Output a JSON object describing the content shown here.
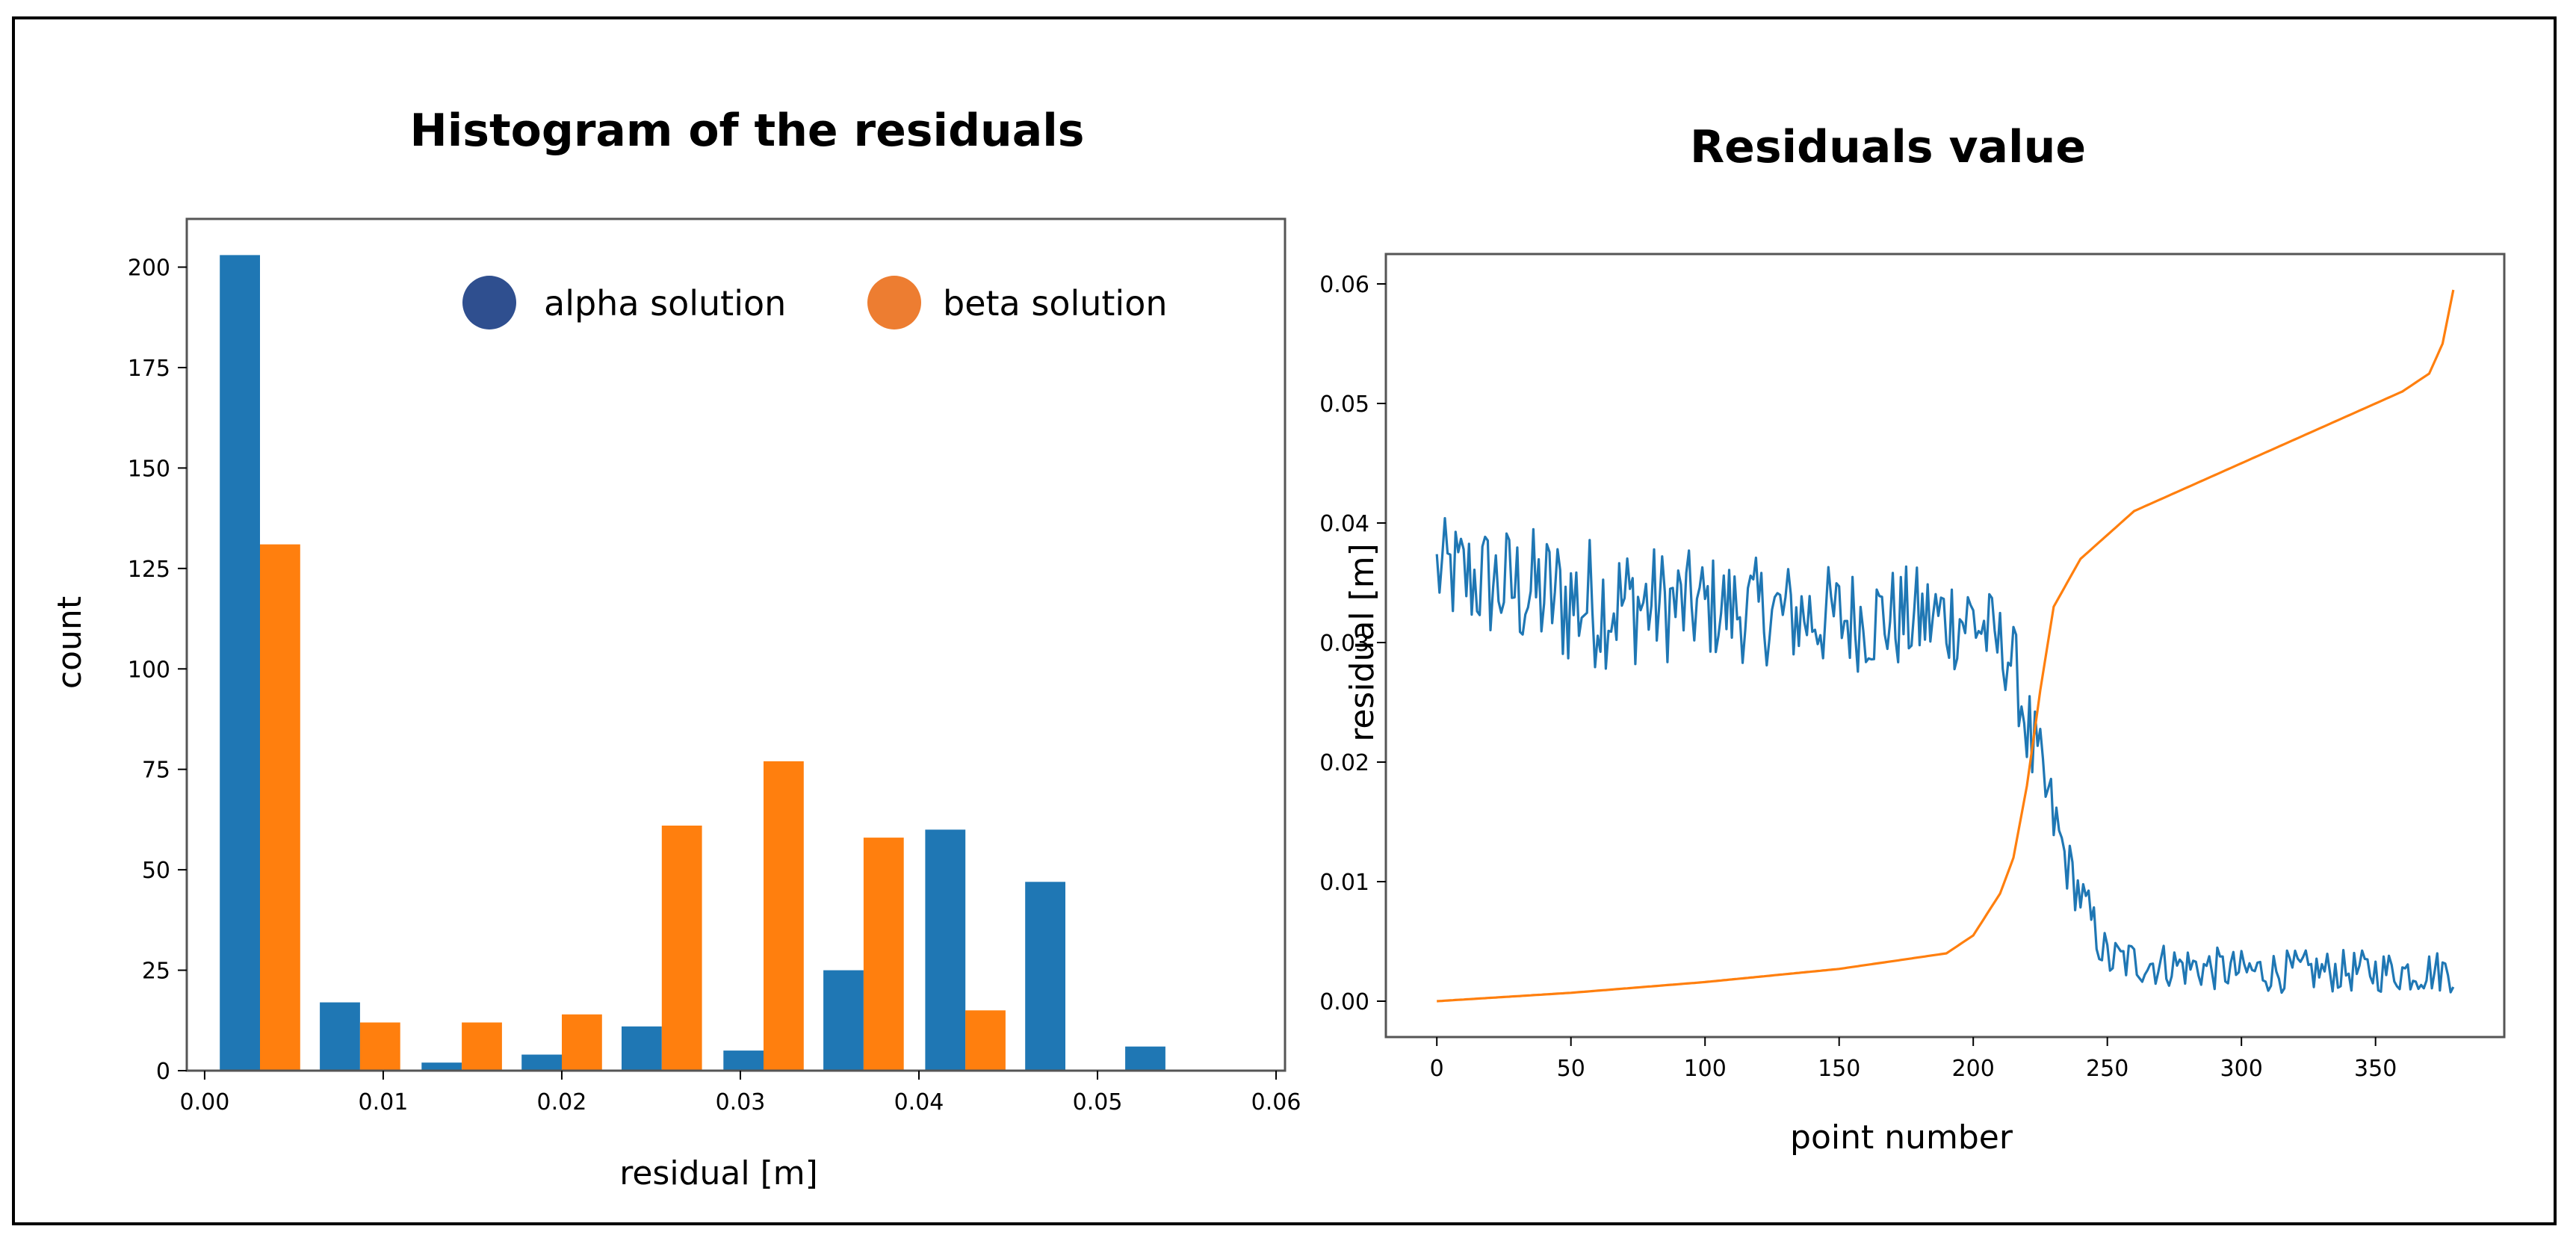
{
  "chart_data": [
    {
      "type": "bar",
      "title": "Histogram of the residuals",
      "xlabel": "residual [m]",
      "ylabel": "count",
      "xlim": [
        -0.001,
        0.0605
      ],
      "ylim": [
        0,
        212
      ],
      "xticks": [
        0.0,
        0.01,
        0.02,
        0.03,
        0.04,
        0.05,
        0.06
      ],
      "xtick_labels": [
        "0.00",
        "0.01",
        "0.02",
        "0.03",
        "0.04",
        "0.05",
        "0.06"
      ],
      "yticks": [
        0,
        25,
        50,
        75,
        100,
        125,
        150,
        175,
        200
      ],
      "yticks_labels": [
        "0",
        "25",
        "50",
        "75",
        "100",
        "125",
        "150",
        "175",
        "200"
      ],
      "bin_centers": [
        0.0031,
        0.0087,
        0.0144,
        0.02,
        0.0256,
        0.0313,
        0.0369,
        0.0426,
        0.0482,
        0.0538
      ],
      "bar_width": 0.00225,
      "series": [
        {
          "name": "alpha solution",
          "color": "#1f77b4",
          "values": [
            203,
            17,
            2,
            4,
            11,
            5,
            25,
            60,
            47,
            6
          ]
        },
        {
          "name": "beta solution",
          "color": "#ff7f0e",
          "values": [
            131,
            12,
            12,
            14,
            61,
            77,
            58,
            15,
            0,
            0
          ]
        }
      ],
      "legend": {
        "placement": "top-right",
        "alpha_color": "#2f4f8f",
        "beta_color": "#ed7d31"
      }
    },
    {
      "type": "line",
      "title": "Residuals value",
      "xlabel": "point number",
      "ylabel": "residual [m]",
      "xlim": [
        -19,
        398
      ],
      "ylim": [
        -0.003,
        0.0625
      ],
      "xticks": [
        0,
        50,
        100,
        150,
        200,
        250,
        300,
        350
      ],
      "xtick_labels": [
        "0",
        "50",
        "100",
        "150",
        "200",
        "250",
        "300",
        "350"
      ],
      "yticks": [
        0.0,
        0.01,
        0.02,
        0.03,
        0.04,
        0.05,
        0.06
      ],
      "ytick_labels": [
        "0.00",
        "0.01",
        "0.02",
        "0.03",
        "0.04",
        "0.05",
        "0.06"
      ],
      "n_points": 380,
      "series": [
        {
          "name": "alpha solution",
          "color": "#1f77b4",
          "anchors_x": [
            0,
            50,
            100,
            150,
            200,
            215,
            222,
            235,
            250,
            300,
            379
          ],
          "anchors_y": [
            0.036,
            0.0335,
            0.033,
            0.032,
            0.032,
            0.0285,
            0.021,
            0.0115,
            0.0035,
            0.0025,
            0.0025
          ],
          "noise_amplitude": [
            0.0045,
            0.006,
            0.0045,
            0.0045,
            0.0045,
            0.0032,
            0.0045,
            0.0025,
            0.002,
            0.0018,
            0.0018
          ]
        },
        {
          "name": "beta solution",
          "color": "#ff7f0e",
          "anchors_x": [
            0,
            50,
            100,
            150,
            190,
            200,
            210,
            215,
            220,
            225,
            230,
            240,
            260,
            300,
            360,
            370,
            375,
            379
          ],
          "anchors_y": [
            0.0,
            0.0007,
            0.0016,
            0.0027,
            0.004,
            0.0055,
            0.009,
            0.012,
            0.018,
            0.026,
            0.033,
            0.037,
            0.041,
            0.045,
            0.051,
            0.0525,
            0.055,
            0.0595
          ]
        }
      ]
    }
  ]
}
